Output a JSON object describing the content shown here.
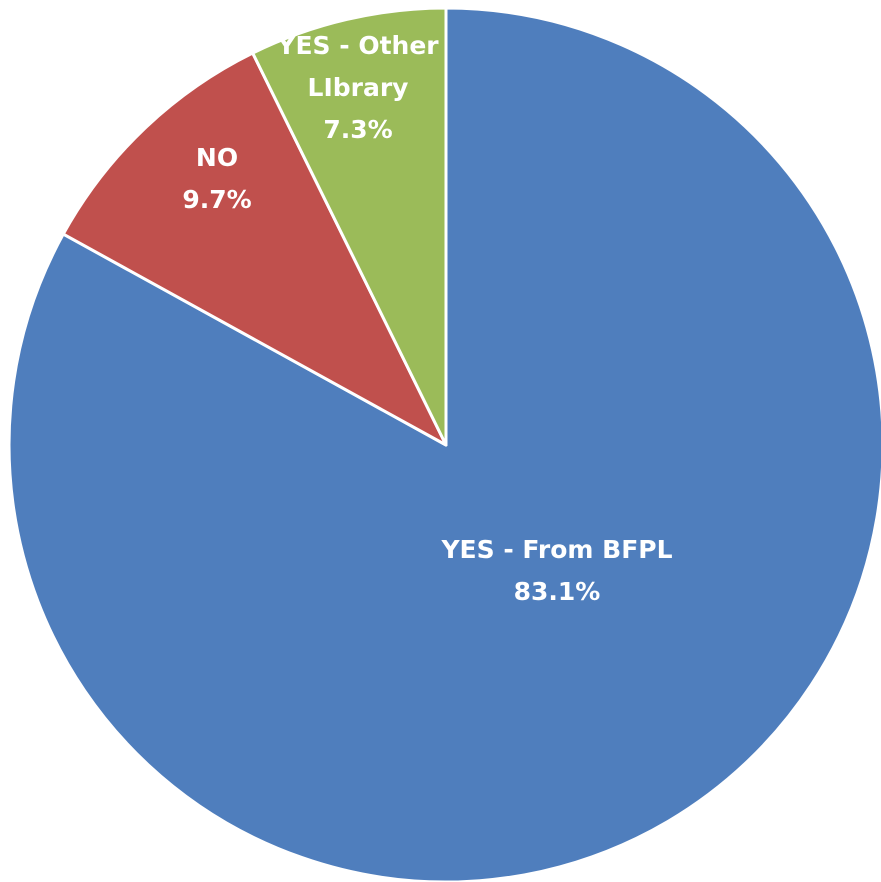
{
  "chart_data": {
    "type": "pie",
    "start_angle": "12 o'clock",
    "direction": "clockwise",
    "slices": [
      {
        "label_lines": [
          "YES - From BFPL"
        ],
        "value": 83.1,
        "value_label": "83.1%",
        "color": "#4F7EBD"
      },
      {
        "label_lines": [
          "NO"
        ],
        "value": 9.7,
        "value_label": "9.7%",
        "color": "#C0504D"
      },
      {
        "label_lines": [
          "YES - Other",
          "LIbrary"
        ],
        "value": 7.3,
        "value_label": "7.3%",
        "color": "#9BBB59"
      }
    ]
  }
}
